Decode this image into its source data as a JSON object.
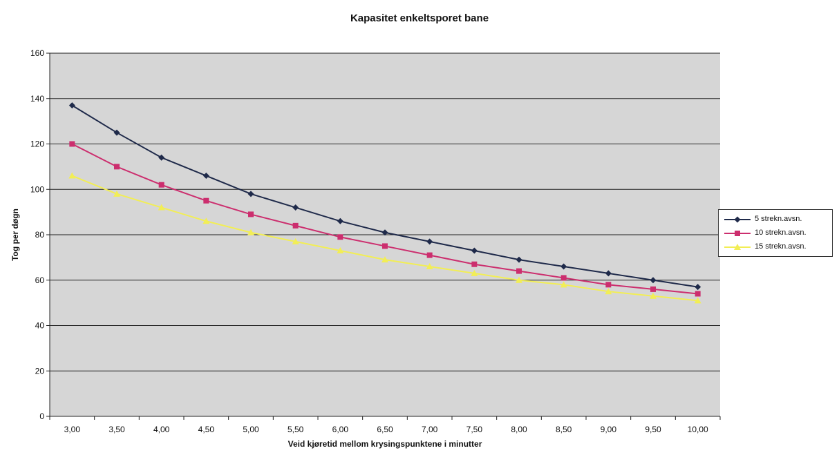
{
  "chart_data": {
    "type": "line",
    "title": "Kapasitet enkeltsporet bane",
    "xlabel": "Veid kjøretid mellom krysingspunktene i minutter",
    "ylabel": "Tog per døgn",
    "categories": [
      "3,00",
      "3,50",
      "4,00",
      "4,50",
      "5,00",
      "5,50",
      "6,00",
      "6,50",
      "7,00",
      "7,50",
      "8,00",
      "8,50",
      "9,00",
      "9,50",
      "10,00"
    ],
    "ylim": [
      0,
      160
    ],
    "yticks": [
      0,
      20,
      40,
      60,
      80,
      100,
      120,
      140,
      160
    ],
    "grid": true,
    "legend_position": "right",
    "series": [
      {
        "name": "5 strekn.avsn.",
        "color": "#1f2a4a",
        "marker": "diamond",
        "values": [
          137,
          125,
          114,
          106,
          98,
          92,
          86,
          81,
          77,
          73,
          69,
          66,
          63,
          60,
          57
        ]
      },
      {
        "name": "10 strekn.avsn.",
        "color": "#cc2e6e",
        "marker": "square",
        "values": [
          120,
          110,
          102,
          95,
          89,
          84,
          79,
          75,
          71,
          67,
          64,
          61,
          58,
          56,
          54
        ]
      },
      {
        "name": "15 strekn.avsn.",
        "color": "#f2ee55",
        "marker": "triangle",
        "values": [
          106,
          98,
          92,
          86,
          81,
          77,
          73,
          69,
          66,
          63,
          60,
          58,
          55,
          53,
          51
        ]
      }
    ]
  },
  "colors": {
    "plot_background": "#d6d6d6",
    "gridline": "#222222"
  }
}
